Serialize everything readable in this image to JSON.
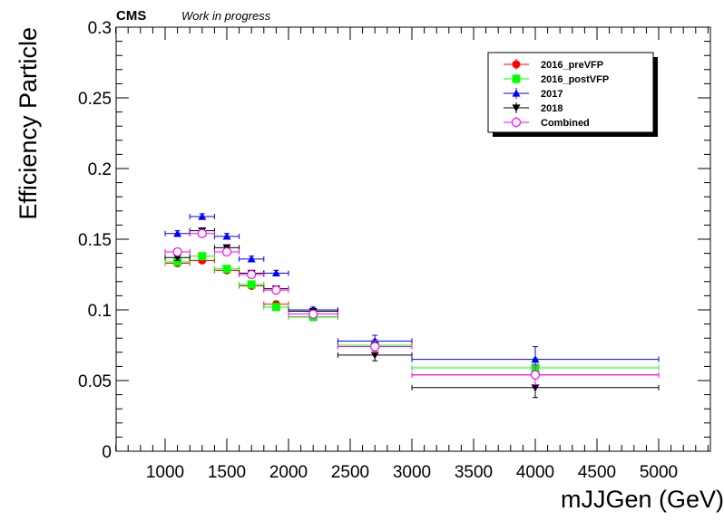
{
  "header": {
    "experiment": "CMS",
    "status": "Work in progress"
  },
  "chart_data": {
    "type": "scatter",
    "title": "",
    "xlabel": "mJJGen (GeV)",
    "ylabel": "Efficiency Particle",
    "xlim": [
      600,
      5400
    ],
    "ylim": [
      0,
      0.3
    ],
    "x_ticks": [
      1000,
      1500,
      2000,
      2500,
      3000,
      3500,
      4000,
      4500,
      5000
    ],
    "y_ticks": [
      0,
      0.05,
      0.1,
      0.15,
      0.2,
      0.25,
      0.3
    ],
    "y_tick_labels": [
      "0",
      "0.05",
      "0.1",
      "0.15",
      "0.2",
      "0.25",
      "0.3"
    ],
    "grid": false,
    "legend_position": "top-right",
    "bins": [
      {
        "low": 1000,
        "high": 1200,
        "center": 1100
      },
      {
        "low": 1200,
        "high": 1400,
        "center": 1300
      },
      {
        "low": 1400,
        "high": 1600,
        "center": 1500
      },
      {
        "low": 1600,
        "high": 1800,
        "center": 1700
      },
      {
        "low": 1800,
        "high": 2000,
        "center": 1900
      },
      {
        "low": 2000,
        "high": 2400,
        "center": 2200
      },
      {
        "low": 2400,
        "high": 3000,
        "center": 2700
      },
      {
        "low": 3000,
        "high": 5000,
        "center": 4000
      }
    ],
    "series": [
      {
        "name": "2016_preVFP",
        "color": "#ff0000",
        "marker": "circle",
        "values": [
          0.133,
          0.135,
          0.128,
          0.117,
          0.104,
          0.095,
          0.075,
          0.054
        ],
        "errors": [
          0.002,
          0.002,
          0.002,
          0.002,
          0.002,
          0.002,
          0.004,
          0.007
        ]
      },
      {
        "name": "2016_postVFP",
        "color": "#00ff00",
        "marker": "square",
        "values": [
          0.134,
          0.138,
          0.129,
          0.118,
          0.102,
          0.095,
          0.075,
          0.059
        ],
        "errors": [
          0.002,
          0.002,
          0.002,
          0.002,
          0.002,
          0.002,
          0.004,
          0.007
        ]
      },
      {
        "name": "2017",
        "color": "#0000ff",
        "marker": "triangle-up",
        "values": [
          0.154,
          0.166,
          0.152,
          0.136,
          0.126,
          0.1,
          0.078,
          0.065
        ],
        "errors": [
          0.002,
          0.002,
          0.002,
          0.002,
          0.002,
          0.002,
          0.004,
          0.009
        ]
      },
      {
        "name": "2018",
        "color": "#000000",
        "marker": "triangle-down",
        "values": [
          0.137,
          0.156,
          0.144,
          0.126,
          0.115,
          0.099,
          0.068,
          0.045
        ],
        "errors": [
          0.002,
          0.002,
          0.002,
          0.002,
          0.002,
          0.002,
          0.004,
          0.007
        ]
      },
      {
        "name": "Combined",
        "color": "#ff00ff",
        "marker": "open-circle",
        "values": [
          0.141,
          0.154,
          0.141,
          0.125,
          0.114,
          0.097,
          0.074,
          0.054
        ],
        "errors": [
          0.002,
          0.002,
          0.002,
          0.002,
          0.002,
          0.002,
          0.004,
          0.007
        ]
      }
    ]
  }
}
